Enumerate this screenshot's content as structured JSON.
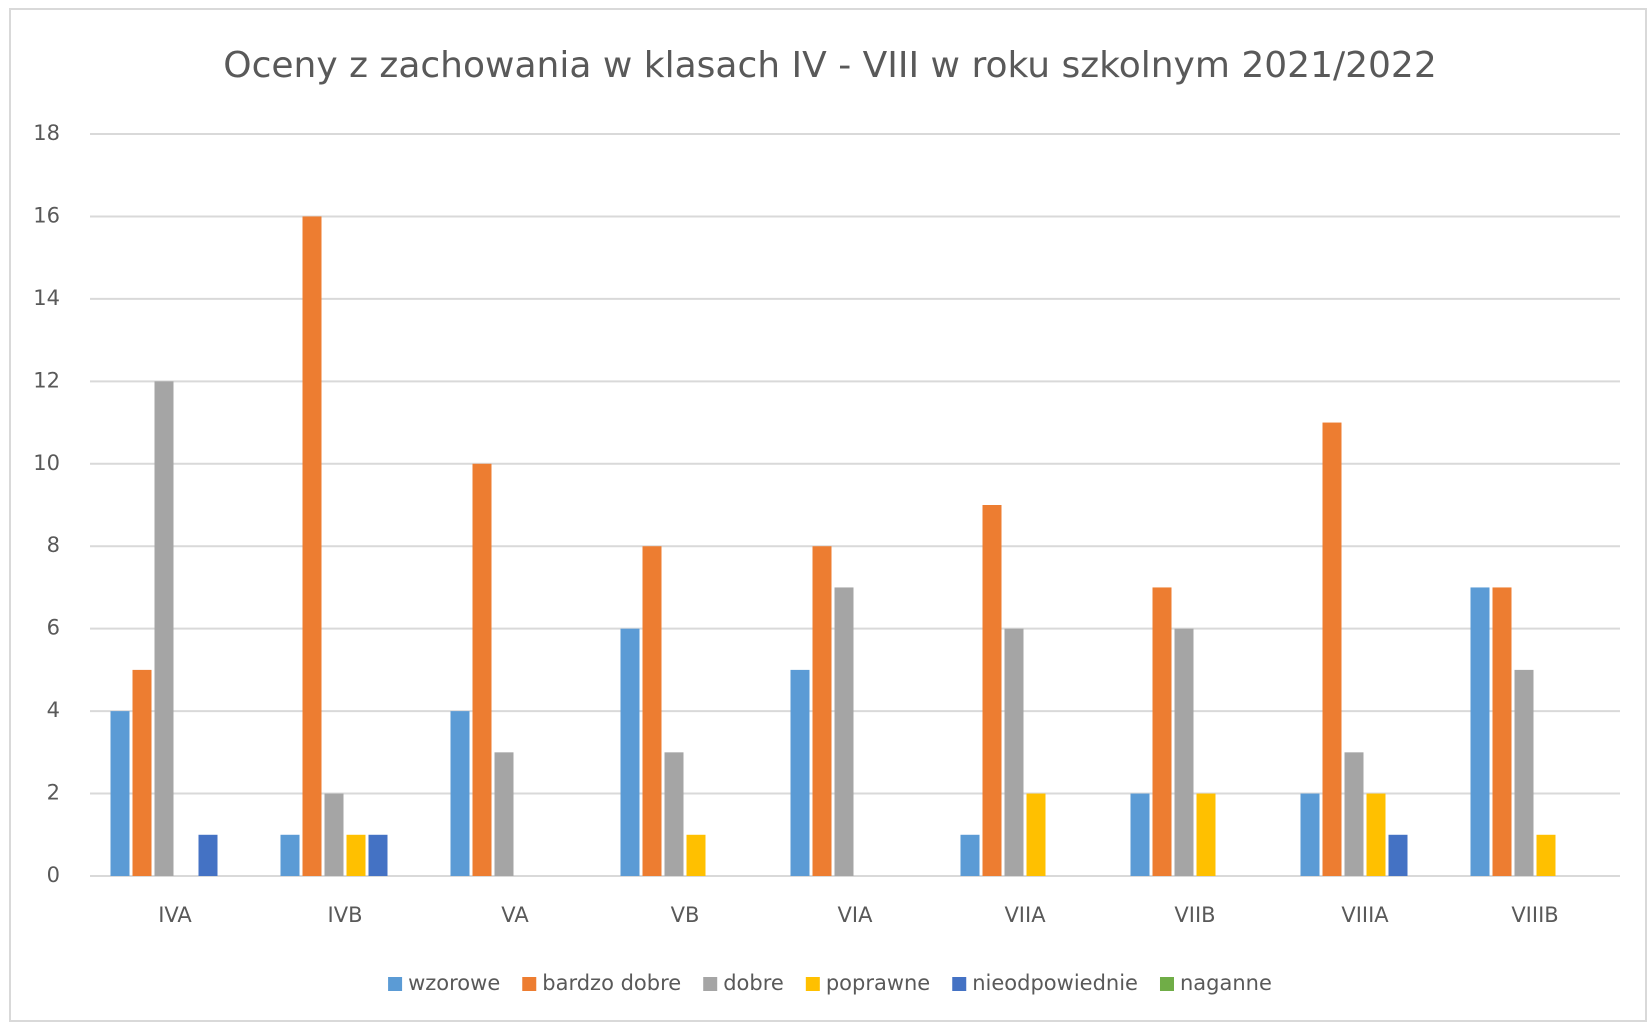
{
  "chart_data": {
    "type": "bar",
    "title": "Oceny z zachowania w klasach IV - VIII w roku szkolnym 2021/2022",
    "categories": [
      "IVA",
      "IVB",
      "VA",
      "VB",
      "VIA",
      "VIIA",
      "VIIB",
      "VIIIA",
      "VIIIB"
    ],
    "series": [
      {
        "name": "wzorowe",
        "color": "#5b9bd5",
        "values": [
          4,
          1,
          4,
          6,
          5,
          1,
          2,
          2,
          7
        ]
      },
      {
        "name": "bardzo dobre",
        "color": "#ed7d31",
        "values": [
          5,
          16,
          10,
          8,
          8,
          9,
          7,
          11,
          7
        ]
      },
      {
        "name": "dobre",
        "color": "#a5a5a5",
        "values": [
          12,
          2,
          3,
          3,
          7,
          6,
          6,
          3,
          5
        ]
      },
      {
        "name": "poprawne",
        "color": "#ffc000",
        "values": [
          0,
          1,
          0,
          1,
          0,
          2,
          2,
          2,
          1
        ]
      },
      {
        "name": "nieodpowiednie",
        "color": "#4472c4",
        "values": [
          1,
          1,
          0,
          0,
          0,
          0,
          0,
          1,
          0
        ]
      },
      {
        "name": "naganne",
        "color": "#70ad47",
        "values": [
          0,
          0,
          0,
          0,
          0,
          0,
          0,
          0,
          0
        ]
      }
    ],
    "ylim": [
      0,
      18
    ],
    "yticks": [
      0,
      2,
      4,
      6,
      8,
      10,
      12,
      14,
      16,
      18
    ],
    "grid": true,
    "legend": "bottom"
  }
}
